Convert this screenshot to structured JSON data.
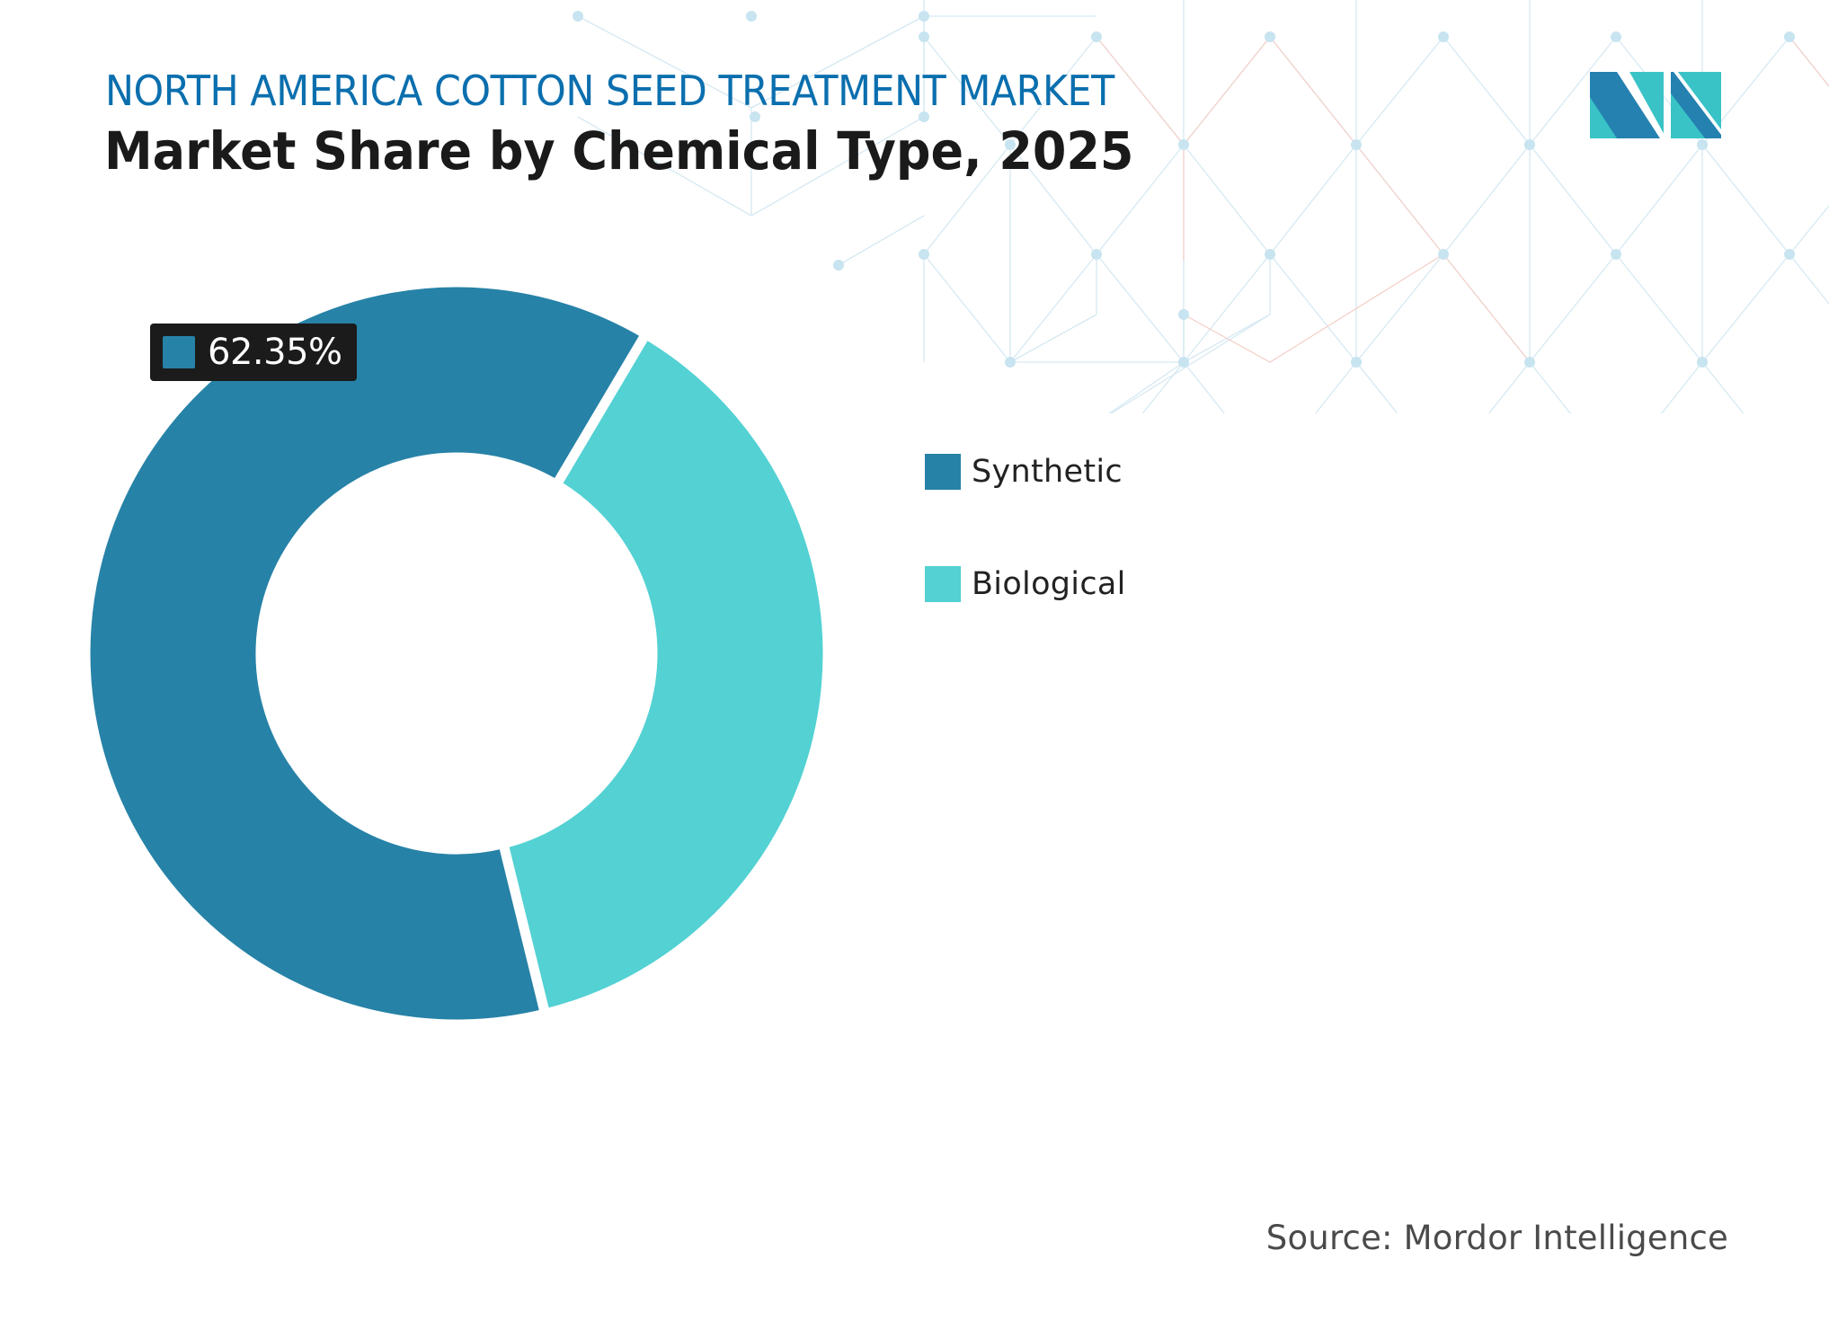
{
  "header": {
    "subtitle": "NORTH AMERICA COTTON SEED TREATMENT MARKET",
    "title": "Market Share by Chemical Type, 2025"
  },
  "logo": {
    "name": "mordor-intelligence-logo",
    "colors": {
      "dark": "#2481B0",
      "light": "#39C3C6"
    }
  },
  "data_label": {
    "value": "62.35%",
    "color": "#2782A7"
  },
  "legend": {
    "items": [
      {
        "label": "Synthetic",
        "color": "#2782A7"
      },
      {
        "label": "Biological",
        "color": "#53D1D3"
      }
    ]
  },
  "footer": {
    "source": "Source: Mordor Intelligence"
  },
  "colors": {
    "title_blue": "#0B6FAE",
    "title_dark": "#1A1A1A",
    "background": "#FFFFFF"
  },
  "chart_data": {
    "type": "pie",
    "variant": "donut",
    "title": "Market Share by Chemical Type, 2025",
    "subtitle": "NORTH AMERICA COTTON SEED TREATMENT MARKET",
    "categories": [
      "Synthetic",
      "Biological"
    ],
    "values": [
      62.35,
      37.65
    ],
    "unit": "%",
    "colors": [
      "#2782A7",
      "#53D1D3"
    ],
    "labels_shown": [
      "62.35%"
    ],
    "legend_position": "right",
    "source": "Source: Mordor Intelligence"
  }
}
